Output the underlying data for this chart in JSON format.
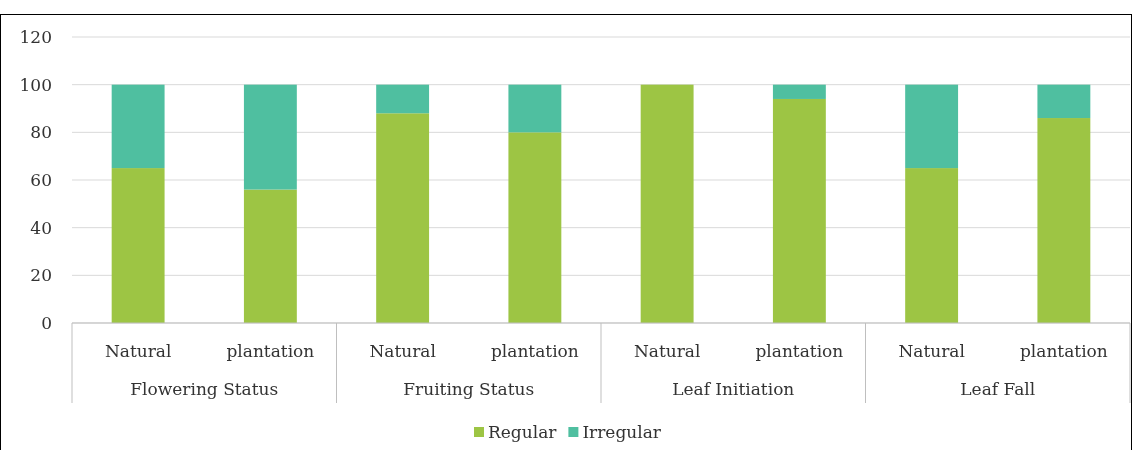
{
  "chart_data": {
    "type": "bar",
    "stacked": true,
    "categories": [
      "Natural",
      "plantation",
      "Natural",
      "plantation",
      "Natural",
      "plantation",
      "Natural",
      "plantation"
    ],
    "series": [
      {
        "name": "Regular",
        "color": "#9dc544",
        "values": [
          65,
          56,
          88,
          80,
          100,
          94,
          65,
          86
        ]
      },
      {
        "name": "Irregular",
        "color": "#4fbfa0",
        "values": [
          35,
          44,
          12,
          20,
          0,
          6,
          35,
          14
        ]
      }
    ],
    "annotations": [
      "Flowering Status",
      "Fruiting Status",
      "Leaf Initiation",
      "Leaf Fall"
    ],
    "ylim": [
      0,
      120
    ],
    "yticks": [
      0,
      20,
      40,
      60,
      80,
      100,
      120
    ],
    "grid": "y",
    "legend": "bottom"
  }
}
